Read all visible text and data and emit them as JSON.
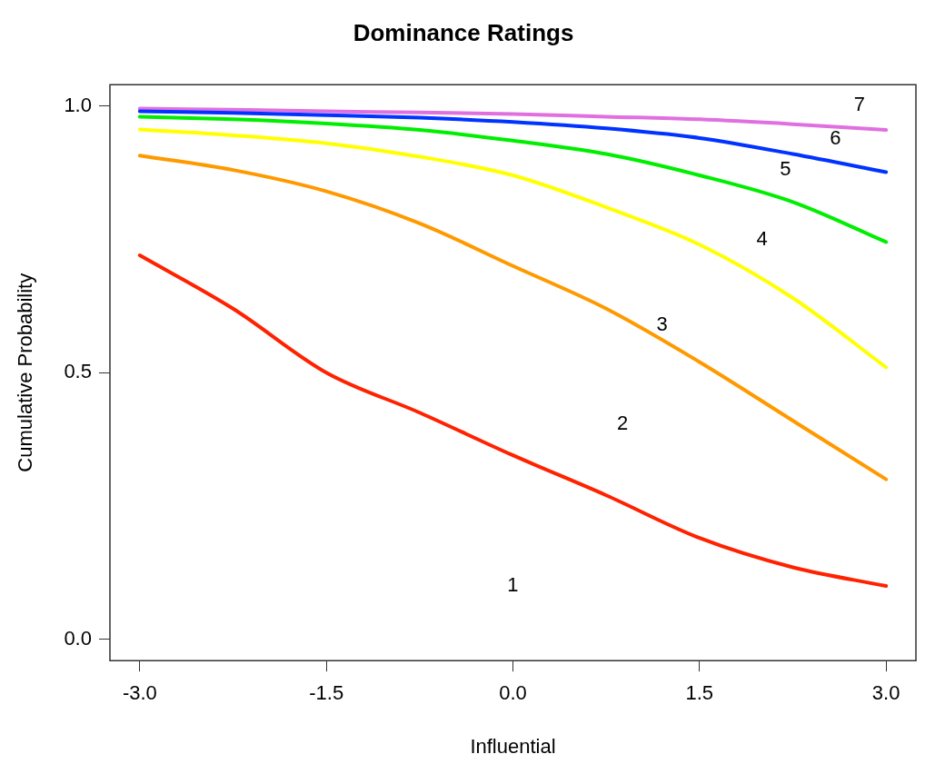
{
  "chart_data": {
    "type": "line",
    "title": "Dominance Ratings",
    "xlabel": "Influential",
    "ylabel": "Cumulative Probability",
    "x": [
      -3,
      -2.25,
      -1.5,
      -0.75,
      0,
      0.75,
      1.5,
      2.25,
      3
    ],
    "series": [
      {
        "color": "#ff2200",
        "values": [
          0.72,
          0.62,
          0.5,
          0.425,
          0.345,
          0.27,
          0.19,
          0.135,
          0.1
        ]
      },
      {
        "color": "#ff9900",
        "values": [
          0.907,
          0.88,
          0.84,
          0.78,
          0.7,
          0.62,
          0.52,
          0.41,
          0.3
        ]
      },
      {
        "color": "#ffff00",
        "values": [
          0.956,
          0.945,
          0.93,
          0.905,
          0.87,
          0.81,
          0.74,
          0.64,
          0.51
        ]
      },
      {
        "color": "#00ee00",
        "values": [
          0.98,
          0.975,
          0.967,
          0.955,
          0.935,
          0.91,
          0.87,
          0.82,
          0.745
        ]
      },
      {
        "color": "#0033ff",
        "values": [
          0.99,
          0.987,
          0.983,
          0.978,
          0.97,
          0.958,
          0.94,
          0.91,
          0.876
        ]
      },
      {
        "color": "#e070e0",
        "values": [
          0.995,
          0.993,
          0.99,
          0.988,
          0.985,
          0.98,
          0.975,
          0.966,
          0.955
        ]
      }
    ],
    "xlim": [
      -3.24,
      3.24
    ],
    "ylim": [
      -0.04,
      1.04
    ],
    "xticks": [
      {
        "value": -3,
        "label": "-3.0"
      },
      {
        "value": -1.5,
        "label": "-1.5"
      },
      {
        "value": 0,
        "label": "0.0"
      },
      {
        "value": 1.5,
        "label": "1.5"
      },
      {
        "value": 3,
        "label": "3.0"
      }
    ],
    "yticks": [
      {
        "value": 0,
        "label": "0.0"
      },
      {
        "value": 0.5,
        "label": "0.5"
      },
      {
        "value": 1,
        "label": "1.0"
      }
    ],
    "annotations": [
      "1",
      "2",
      "3",
      "4",
      "5",
      "6",
      "7"
    ],
    "grid": false,
    "legend": false,
    "marker": "none",
    "line_style": "solid"
  }
}
